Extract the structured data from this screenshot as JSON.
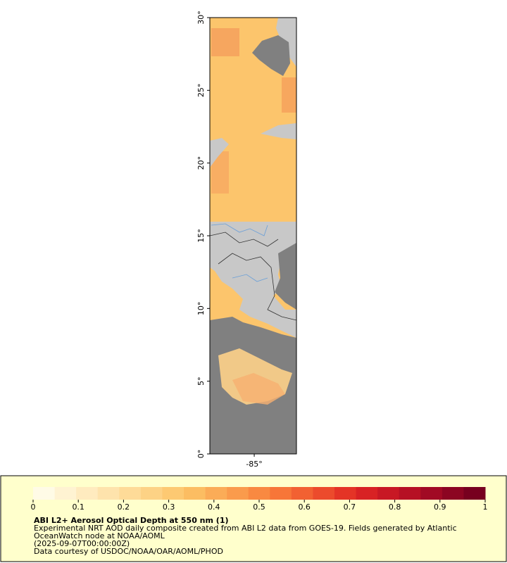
{
  "map": {
    "latlim": [
      0,
      30
    ],
    "lonlim": [
      -88.05,
      -82.1
    ],
    "lat_ticks": [
      {
        "value": 0,
        "label": "0°"
      },
      {
        "value": 5,
        "label": "5°"
      },
      {
        "value": 10,
        "label": "10°"
      },
      {
        "value": 15,
        "label": "15°"
      },
      {
        "value": 20,
        "label": "20°"
      },
      {
        "value": 25,
        "label": "25°"
      },
      {
        "value": 30,
        "label": "30°"
      }
    ],
    "lon_ticks": [
      {
        "value": -85,
        "label": "-85°"
      }
    ]
  },
  "colorbar": {
    "range": [
      0,
      1
    ],
    "ticks": [
      0,
      0.1,
      0.2,
      0.3,
      0.4,
      0.5,
      0.6,
      0.7,
      0.8,
      0.9,
      1
    ],
    "colors": [
      "#fffbe6",
      "#fff3d2",
      "#ffebbf",
      "#fee3ac",
      "#fedb98",
      "#fdd285",
      "#fdc972",
      "#fcbd62",
      "#fbac57",
      "#fa9b4c",
      "#f98941",
      "#f77638",
      "#f26132",
      "#ec4b2c",
      "#e43426",
      "#d82224",
      "#c81824",
      "#b61024",
      "#a10a24",
      "#8c0522",
      "#77001f"
    ]
  },
  "legend": {
    "title": "ABI L2+ Aerosol Optical Depth at 550 nm (1)",
    "lines": [
      "Experimental NRT AOD daily composite created from ABI L2 data from GOES-19. Fields generated by Atlantic",
      "OceanWatch node at NOAA/AOML",
      "(2025-09-07T00:00:00Z)",
      "Data courtesy of USDOC/NOAA/OAR/AOML/PHOD"
    ]
  }
}
